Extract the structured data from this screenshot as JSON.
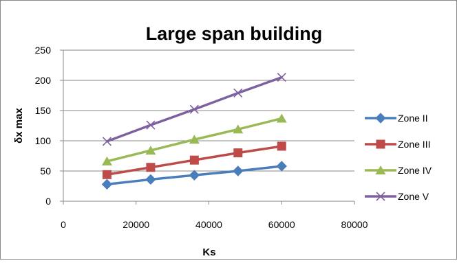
{
  "chart_data": {
    "type": "line",
    "title": "Large span building",
    "xlabel": "Ks",
    "ylabel": "δx max",
    "xlim": [
      0,
      80000
    ],
    "ylim": [
      0,
      250
    ],
    "x_ticks": [
      0,
      20000,
      40000,
      60000,
      80000
    ],
    "y_ticks": [
      0,
      50,
      100,
      150,
      200,
      250
    ],
    "grid": "horizontal",
    "legend_position": "right",
    "x": [
      12000,
      24000,
      36000,
      48000,
      60000
    ],
    "series": [
      {
        "name": "Zone II",
        "values": [
          28,
          36,
          43,
          50,
          58
        ],
        "color": "#4a7ebb",
        "marker": "diamond"
      },
      {
        "name": "Zone III",
        "values": [
          44,
          56,
          68,
          80,
          91
        ],
        "color": "#be4b48",
        "marker": "square"
      },
      {
        "name": "Zone IV",
        "values": [
          66,
          84,
          102,
          119,
          137
        ],
        "color": "#98b954",
        "marker": "triangle"
      },
      {
        "name": "Zone V",
        "values": [
          99,
          126,
          152,
          179,
          205
        ],
        "color": "#7d60a0",
        "marker": "x"
      }
    ]
  }
}
